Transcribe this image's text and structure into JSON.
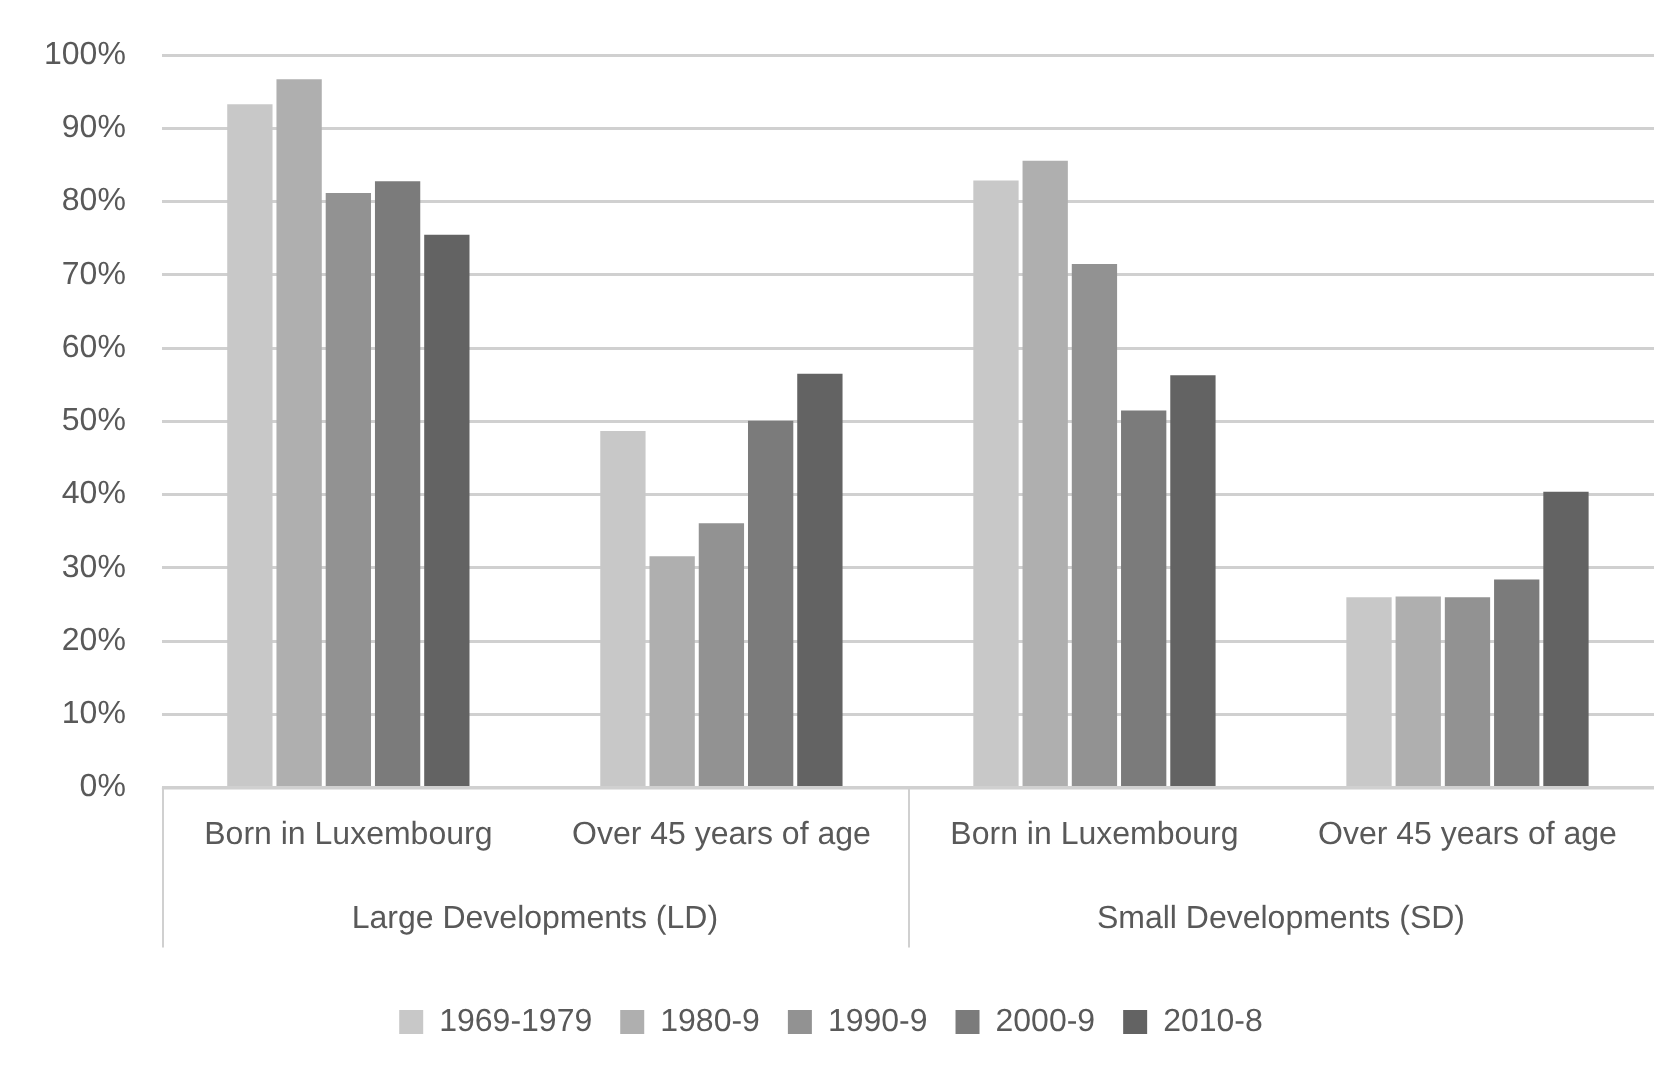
{
  "chart_data": {
    "type": "bar",
    "categories": [
      "Born in Luxembourg",
      "Over 45 years of age",
      "Born in Luxembourg",
      "Over 45 years of age"
    ],
    "series": [
      {
        "name": "1969-1979",
        "color": "#c8c8c8",
        "values": [
          93.3,
          48.7,
          82.9,
          26.0
        ]
      },
      {
        "name": "1980-9",
        "color": "#afafaf",
        "values": [
          96.7,
          31.6,
          85.6,
          26.1
        ]
      },
      {
        "name": "1990-9",
        "color": "#929292",
        "values": [
          81.2,
          36.1,
          71.5,
          26.0
        ]
      },
      {
        "name": "2000-9",
        "color": "#7b7b7b",
        "values": [
          82.8,
          50.1,
          51.5,
          28.4
        ]
      },
      {
        "name": "2010-8",
        "color": "#636363",
        "values": [
          75.5,
          56.5,
          56.3,
          40.4
        ]
      }
    ],
    "annotations": [
      "Large Developments (LD)",
      "Small Developments (SD)"
    ],
    "ylim": [
      0,
      100
    ],
    "yticks": [
      {
        "value": 0,
        "label": "0%"
      },
      {
        "value": 10,
        "label": "10%"
      },
      {
        "value": 20,
        "label": "20%"
      },
      {
        "value": 30,
        "label": "30%"
      },
      {
        "value": 40,
        "label": "40%"
      },
      {
        "value": 50,
        "label": "50%"
      },
      {
        "value": 60,
        "label": "60%"
      },
      {
        "value": 70,
        "label": "70%"
      },
      {
        "value": 80,
        "label": "80%"
      },
      {
        "value": 90,
        "label": "90%"
      },
      {
        "value": 100,
        "label": "100%"
      }
    ],
    "grid": "y",
    "legend": "bottom"
  }
}
